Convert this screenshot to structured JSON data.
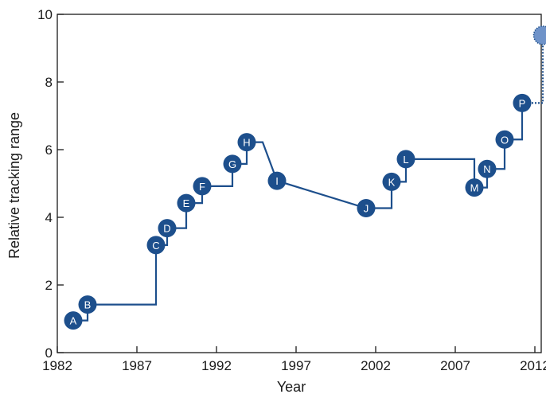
{
  "chart_data": {
    "type": "line",
    "xlabel": "Year",
    "ylabel": "Relative tracking range",
    "xlim": [
      1982,
      2013.2
    ],
    "ylim": [
      0,
      10
    ],
    "xticks": [
      1982,
      1987,
      1992,
      1997,
      2002,
      2007,
      2012
    ],
    "yticks": [
      0,
      2,
      4,
      6,
      8,
      10
    ],
    "xtick_labels": [
      "1982",
      "1987",
      "1992",
      "1997",
      "2002",
      "2007",
      "2012"
    ],
    "ytick_labels": [
      "0",
      "2",
      "4",
      "6",
      "8",
      "10"
    ],
    "grid": false,
    "line_color": "#1d4f8c",
    "projected_marker_color": "#6f93c9",
    "series": [
      {
        "points": [
          {
            "label": "A",
            "x": 1983.0,
            "y": 0.95
          },
          {
            "label": "B",
            "x": 1983.9,
            "y": 1.42
          },
          {
            "label": "C",
            "x": 1988.2,
            "y": 3.18
          },
          {
            "label": "D",
            "x": 1988.9,
            "y": 3.68
          },
          {
            "label": "E",
            "x": 1990.1,
            "y": 4.42
          },
          {
            "label": "F",
            "x": 1991.1,
            "y": 4.92
          },
          {
            "label": "G",
            "x": 1993.0,
            "y": 5.58
          },
          {
            "label": "H",
            "x": 1993.9,
            "y": 6.22
          },
          {
            "label": "I",
            "x": 1995.8,
            "y": 5.08
          },
          {
            "label": "J",
            "x": 2001.4,
            "y": 4.27
          },
          {
            "label": "K",
            "x": 2003.0,
            "y": 5.05
          },
          {
            "label": "L",
            "x": 2003.9,
            "y": 5.72
          },
          {
            "label": "M",
            "x": 2008.2,
            "y": 4.88
          },
          {
            "label": "N",
            "x": 2009.0,
            "y": 5.43
          },
          {
            "label": "O",
            "x": 2010.1,
            "y": 6.3
          },
          {
            "label": "P",
            "x": 2011.2,
            "y": 7.38
          }
        ],
        "projected": {
          "x": 2012.5,
          "y": 9.38
        }
      }
    ]
  }
}
